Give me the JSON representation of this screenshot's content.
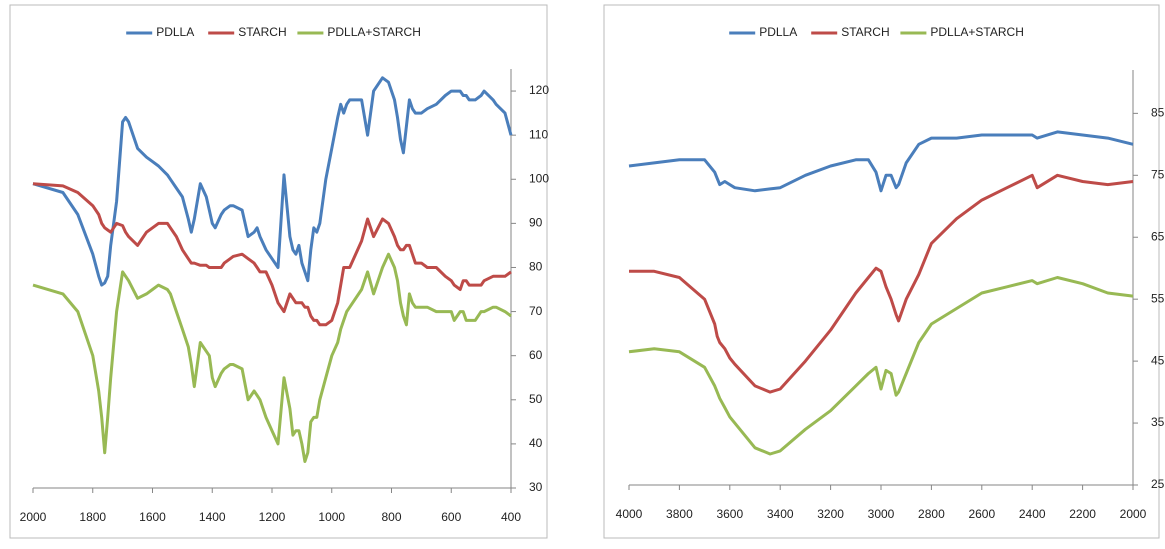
{
  "chart_data": [
    {
      "type": "line",
      "x": [
        2000,
        1900,
        1850,
        1800,
        1780,
        1770,
        1760,
        1750,
        1740,
        1720,
        1700,
        1690,
        1680,
        1650,
        1620,
        1600,
        1580,
        1550,
        1540,
        1520,
        1500,
        1480,
        1470,
        1460,
        1440,
        1420,
        1410,
        1400,
        1390,
        1370,
        1360,
        1340,
        1330,
        1300,
        1280,
        1260,
        1250,
        1240,
        1220,
        1200,
        1180,
        1160,
        1140,
        1130,
        1120,
        1110,
        1100,
        1090,
        1080,
        1070,
        1060,
        1050,
        1040,
        1020,
        1000,
        980,
        970,
        960,
        950,
        940,
        900,
        880,
        860,
        830,
        810,
        790,
        780,
        770,
        760,
        750,
        740,
        730,
        720,
        710,
        700,
        680,
        650,
        620,
        600,
        590,
        570,
        560,
        550,
        540,
        530,
        520,
        500,
        490,
        460,
        450,
        420,
        400
      ],
      "series": [
        {
          "name": "PDLLA",
          "color": "#4a7ebb",
          "values": [
            99,
            97,
            92,
            83,
            78,
            76,
            76.5,
            78,
            85,
            95,
            113,
            114,
            113,
            107,
            105,
            104,
            103,
            101,
            100,
            98,
            96,
            91,
            88,
            91,
            99,
            96,
            93,
            90,
            89,
            92,
            93,
            94,
            94,
            93,
            87,
            88,
            89,
            87,
            84,
            82,
            80,
            101,
            87,
            84,
            83,
            85,
            81,
            79,
            77,
            84,
            89,
            88,
            90,
            100,
            107,
            114,
            117,
            115,
            117,
            118,
            118,
            110,
            120,
            123,
            122,
            118,
            114,
            109,
            106,
            112,
            118,
            116,
            115,
            115,
            115,
            116,
            117,
            119,
            120,
            120,
            120,
            119,
            119,
            118,
            118,
            118,
            119,
            120,
            118,
            117,
            115,
            110
          ]
        },
        {
          "name": "STARCH",
          "color": "#be4b48",
          "values": [
            99,
            98.5,
            97,
            94,
            92,
            90,
            89,
            88.5,
            88,
            90,
            89.5,
            88,
            87,
            85,
            88,
            89,
            90,
            90,
            89,
            87,
            84,
            82,
            81,
            81,
            80.5,
            80.5,
            80,
            80,
            80,
            80,
            81,
            82,
            82.5,
            83,
            82,
            81,
            80,
            79,
            79,
            76,
            72,
            70,
            74,
            73,
            72,
            72,
            72,
            71,
            71,
            69,
            68,
            68,
            67,
            67,
            68,
            72,
            76,
            80,
            80,
            80,
            86,
            91,
            87,
            91,
            90,
            87,
            85,
            84,
            84,
            85,
            85,
            83,
            81,
            81,
            81,
            80,
            80,
            78,
            77,
            76,
            75,
            77,
            77,
            76,
            76,
            76,
            76,
            77,
            78,
            78,
            78,
            79
          ]
        },
        {
          "name": "PDLLA+STARCH",
          "color": "#98b954",
          "values": [
            76,
            74,
            70,
            60,
            52,
            46,
            38,
            46,
            55,
            70,
            79,
            78,
            77,
            73,
            74,
            75,
            76,
            75,
            74,
            70,
            66,
            62,
            58,
            53,
            63,
            61,
            60,
            55,
            53,
            56,
            57,
            58,
            58,
            57,
            50,
            52,
            51,
            50,
            46,
            43,
            40,
            55,
            48,
            42,
            43,
            43,
            40,
            36,
            38,
            45,
            46,
            46,
            50,
            55,
            60,
            63,
            66,
            68,
            70,
            71,
            75,
            79,
            74,
            80,
            83,
            80,
            77,
            72,
            69,
            67,
            74,
            72,
            71,
            71,
            71,
            71,
            70,
            70,
            70,
            68,
            70,
            70,
            68,
            68,
            68,
            68,
            70,
            70,
            71,
            71,
            70,
            69
          ]
        }
      ],
      "xlim": [
        2000,
        400
      ],
      "xticks": [
        2000,
        1800,
        1600,
        1400,
        1200,
        1000,
        800,
        600,
        400
      ],
      "ylim": [
        30,
        125
      ],
      "yticks": [
        30,
        40,
        50,
        60,
        70,
        80,
        90,
        100,
        110,
        120
      ],
      "y_axis_side": "right",
      "legend": "top"
    },
    {
      "type": "line",
      "x": [
        4000,
        3900,
        3800,
        3700,
        3660,
        3650,
        3640,
        3620,
        3600,
        3580,
        3500,
        3440,
        3400,
        3300,
        3200,
        3100,
        3050,
        3020,
        3000,
        2980,
        2960,
        2940,
        2930,
        2900,
        2850,
        2800,
        2700,
        2600,
        2500,
        2400,
        2380,
        2300,
        2200,
        2100,
        2000
      ],
      "series": [
        {
          "name": "PDLLA",
          "color": "#4a7ebb",
          "values": [
            76.5,
            77,
            77.5,
            77.5,
            75.5,
            74.5,
            73.5,
            74,
            73.5,
            73,
            72.5,
            72.8,
            73,
            75,
            76.5,
            77.5,
            77.5,
            75.5,
            72.5,
            75,
            75,
            73,
            73.5,
            77,
            80,
            81,
            81,
            81.5,
            81.5,
            81.5,
            81,
            82,
            81.5,
            81,
            80
          ]
        },
        {
          "name": "STARCH",
          "color": "#be4b48",
          "values": [
            59.5,
            59.5,
            58.5,
            55,
            51,
            49,
            48,
            47,
            45.5,
            44.5,
            41,
            40,
            40.5,
            45,
            50,
            56,
            58.5,
            60,
            59.5,
            57,
            55,
            52.5,
            51.5,
            55,
            59,
            64,
            68,
            71,
            73,
            75,
            73,
            75,
            74,
            73.5,
            74
          ]
        },
        {
          "name": "PDLLA+STARCH",
          "color": "#98b954",
          "values": [
            46.5,
            47,
            46.5,
            44,
            41,
            40,
            39,
            37.5,
            36,
            35,
            31,
            30,
            30.5,
            34,
            37,
            41,
            43,
            44,
            40.5,
            43.5,
            43,
            39.5,
            40,
            43,
            48,
            51,
            53.5,
            56,
            57,
            58,
            57.5,
            58.5,
            57.5,
            56,
            55.5
          ]
        }
      ],
      "xlim": [
        4000,
        2000
      ],
      "xticks": [
        4000,
        3800,
        3600,
        3400,
        3200,
        3000,
        2800,
        2600,
        2400,
        2200,
        2000
      ],
      "ylim": [
        25,
        92
      ],
      "yticks": [
        25,
        35,
        45,
        55,
        65,
        75,
        85
      ],
      "y_axis_side": "right",
      "legend": "top"
    }
  ]
}
